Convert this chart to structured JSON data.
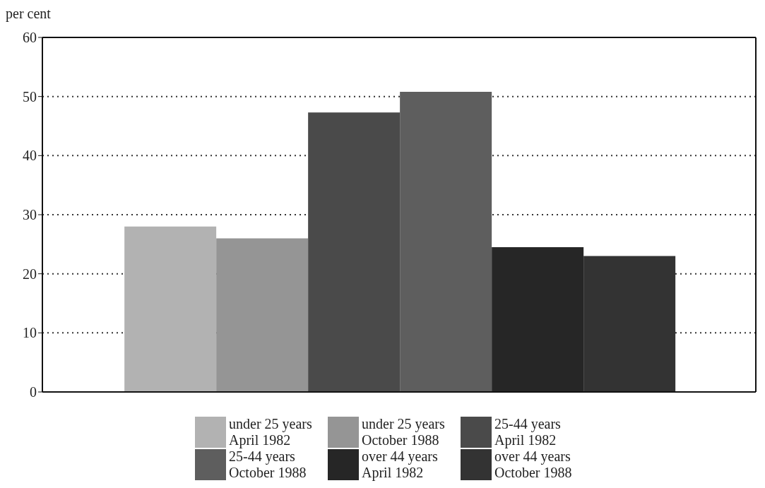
{
  "chart_data": {
    "type": "bar",
    "ylabel": "per cent",
    "categories": [
      null
    ],
    "series": [
      {
        "name": "under 25 years\nApril 1982",
        "color": "#b2b2b2",
        "values": [
          28
        ]
      },
      {
        "name": "under 25 years\nOctober 1988",
        "color": "#959595",
        "values": [
          26
        ]
      },
      {
        "name": "25-44 years\nApril 1982",
        "color": "#4a4a4a",
        "values": [
          47.3
        ]
      },
      {
        "name": "25-44 years\nOctober 1988",
        "color": "#5e5e5e",
        "values": [
          50.8
        ]
      },
      {
        "name": "over 44 years\nApril 1982",
        "color": "#262626",
        "values": [
          24.5
        ]
      },
      {
        "name": "over 44 years\nOctober 1988",
        "color": "#333333",
        "values": [
          23
        ]
      }
    ],
    "ylim": [
      0,
      60
    ],
    "yticks": [
      0,
      10,
      20,
      30,
      40,
      50,
      60
    ],
    "grid": "y",
    "legend": "bottom"
  }
}
